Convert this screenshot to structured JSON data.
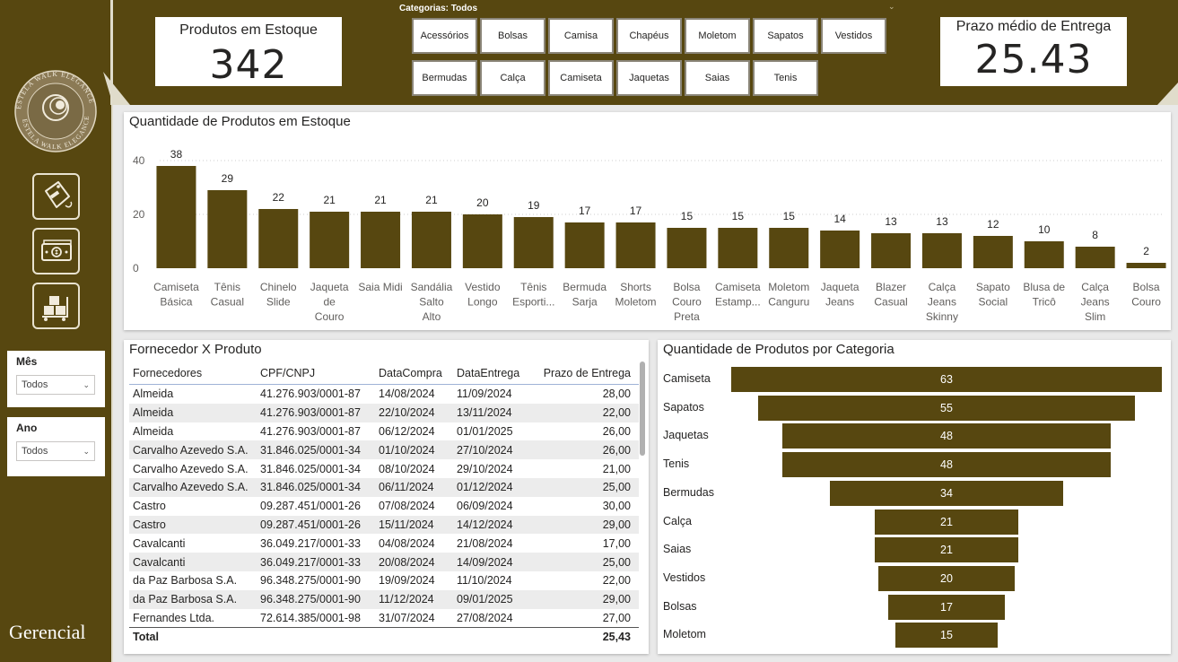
{
  "brand": {
    "primary": "#574710",
    "logo_text_top": "ESTELA WALK ELEGANCE",
    "logo_text_bottom": "ESTELA WALK ELEGANCE",
    "footer_label": "Gerencial"
  },
  "nav": [
    {
      "name": "sale-tag-icon"
    },
    {
      "name": "money-icon"
    },
    {
      "name": "boxes-cart-icon"
    }
  ],
  "slicers": {
    "mes": {
      "label": "Mês",
      "value": "Todos"
    },
    "ano": {
      "label": "Ano",
      "value": "Todos"
    }
  },
  "kpi_estoque": {
    "title": "Produtos em Estoque",
    "value": "342"
  },
  "kpi_prazo": {
    "title": "Prazo médio de Entrega",
    "value": "25.43"
  },
  "categorias": {
    "title": "Categorias: Todos",
    "buttons": [
      "Acessórios",
      "Bolsas",
      "Camisa",
      "Chapéus",
      "Moletom",
      "Sapatos",
      "Vestidos",
      "Bermudas",
      "Calça",
      "Camiseta",
      "Jaquetas",
      "Saias",
      "Tenis"
    ]
  },
  "estoque_chart": {
    "title": "Quantidade de Produtos em Estoque"
  },
  "chart_data": [
    {
      "type": "bar",
      "title": "Quantidade de Produtos em Estoque",
      "categories": [
        [
          "Camiseta",
          "Básica"
        ],
        [
          "Tênis",
          "Casual"
        ],
        [
          "Chinelo",
          "Slide"
        ],
        [
          "Jaqueta",
          "de",
          "Couro"
        ],
        [
          "Saia Midi"
        ],
        [
          "Sandália",
          "Salto",
          "Alto"
        ],
        [
          "Vestido",
          "Longo"
        ],
        [
          "Tênis",
          "Esporti..."
        ],
        [
          "Bermuda",
          "Sarja"
        ],
        [
          "Shorts",
          "Moletom"
        ],
        [
          "Bolsa",
          "Couro",
          "Preta"
        ],
        [
          "Camiseta",
          "Estamp..."
        ],
        [
          "Moletom",
          "Canguru"
        ],
        [
          "Jaqueta",
          "Jeans"
        ],
        [
          "Blazer",
          "Casual"
        ],
        [
          "Calça",
          "Jeans",
          "Skinny"
        ],
        [
          "Sapato",
          "Social"
        ],
        [
          "Blusa de",
          "Tricô"
        ],
        [
          "Calça",
          "Jeans",
          "Slim"
        ],
        [
          "Bolsa",
          "Couro"
        ]
      ],
      "values": [
        38,
        29,
        22,
        21,
        21,
        21,
        20,
        19,
        17,
        17,
        15,
        15,
        15,
        14,
        13,
        13,
        12,
        10,
        8,
        2
      ],
      "yticks": [
        0,
        20,
        40
      ],
      "ylim": [
        0,
        42
      ],
      "grid": true
    },
    {
      "type": "bar",
      "orientation": "funnel",
      "title": "Quantidade de Produtos por Categoria",
      "categories": [
        "Camiseta",
        "Sapatos",
        "Jaquetas",
        "Tenis",
        "Bermudas",
        "Calça",
        "Saias",
        "Vestidos",
        "Bolsas",
        "Moletom"
      ],
      "values": [
        63,
        55,
        48,
        48,
        34,
        21,
        21,
        20,
        17,
        15
      ]
    }
  ],
  "fornecedor_table": {
    "title": "Fornecedor X Produto",
    "headers": [
      "Fornecedores",
      "CPF/CNPJ",
      "DataCompra",
      "DataEntrega",
      "Prazo de Entrega"
    ],
    "rows": [
      [
        "Almeida",
        "41.276.903/0001-87",
        "14/08/2024",
        "11/09/2024",
        "28,00"
      ],
      [
        "Almeida",
        "41.276.903/0001-87",
        "22/10/2024",
        "13/11/2024",
        "22,00"
      ],
      [
        "Almeida",
        "41.276.903/0001-87",
        "06/12/2024",
        "01/01/2025",
        "26,00"
      ],
      [
        "Carvalho Azevedo S.A.",
        "31.846.025/0001-34",
        "01/10/2024",
        "27/10/2024",
        "26,00"
      ],
      [
        "Carvalho Azevedo S.A.",
        "31.846.025/0001-34",
        "08/10/2024",
        "29/10/2024",
        "21,00"
      ],
      [
        "Carvalho Azevedo S.A.",
        "31.846.025/0001-34",
        "06/11/2024",
        "01/12/2024",
        "25,00"
      ],
      [
        "Castro",
        "09.287.451/0001-26",
        "07/08/2024",
        "06/09/2024",
        "30,00"
      ],
      [
        "Castro",
        "09.287.451/0001-26",
        "15/11/2024",
        "14/12/2024",
        "29,00"
      ],
      [
        "Cavalcanti",
        "36.049.217/0001-33",
        "04/08/2024",
        "21/08/2024",
        "17,00"
      ],
      [
        "Cavalcanti",
        "36.049.217/0001-33",
        "20/08/2024",
        "14/09/2024",
        "25,00"
      ],
      [
        "da Paz Barbosa S.A.",
        "96.348.275/0001-90",
        "19/09/2024",
        "11/10/2024",
        "22,00"
      ],
      [
        "da Paz Barbosa S.A.",
        "96.348.275/0001-90",
        "11/12/2024",
        "09/01/2025",
        "29,00"
      ],
      [
        "Fernandes Ltda.",
        "72.614.385/0001-98",
        "31/07/2024",
        "27/08/2024",
        "27,00"
      ]
    ],
    "total_label": "Total",
    "total_value": "25,43"
  },
  "categoria_chart": {
    "title": "Quantidade de Produtos por Categoria"
  }
}
